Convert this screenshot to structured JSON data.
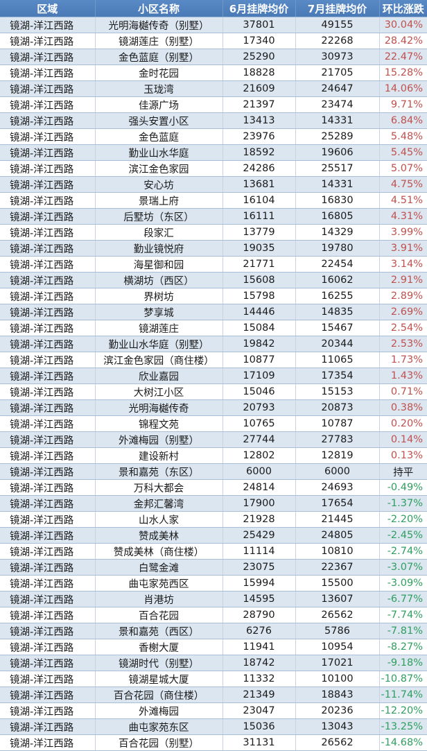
{
  "table": {
    "headers": [
      "区域",
      "小区名称",
      "6月挂牌均价",
      "7月挂牌均价",
      "环比涨跌"
    ],
    "colors": {
      "header_bg": "#4f81bd",
      "stripe": "#dce6f1",
      "up": "#c0504d",
      "down": "#2e9e5e"
    },
    "rows": [
      [
        "镜湖-洋江西路",
        "光明海樾传奇（别墅）",
        "37801",
        "49155",
        "30.04%"
      ],
      [
        "镜湖-洋江西路",
        "镜湖莲庄（别墅）",
        "17340",
        "22268",
        "28.42%"
      ],
      [
        "镜湖-洋江西路",
        "金色蓝庭（别墅）",
        "25290",
        "30973",
        "22.47%"
      ],
      [
        "镜湖-洋江西路",
        "金时花园",
        "18828",
        "21705",
        "15.28%"
      ],
      [
        "镜湖-洋江西路",
        "玉珑湾",
        "21609",
        "24647",
        "14.06%"
      ],
      [
        "镜湖-洋江西路",
        "佳源广场",
        "21397",
        "23474",
        "9.71%"
      ],
      [
        "镜湖-洋江西路",
        "强头安置小区",
        "13413",
        "14331",
        "6.84%"
      ],
      [
        "镜湖-洋江西路",
        "金色蓝庭",
        "23976",
        "25289",
        "5.48%"
      ],
      [
        "镜湖-洋江西路",
        "勤业山水华庭",
        "18592",
        "19606",
        "5.45%"
      ],
      [
        "镜湖-洋江西路",
        "滨江金色家园",
        "24286",
        "25517",
        "5.07%"
      ],
      [
        "镜湖-洋江西路",
        "安心坊",
        "13681",
        "14331",
        "4.75%"
      ],
      [
        "镜湖-洋江西路",
        "景瑞上府",
        "16104",
        "16830",
        "4.51%"
      ],
      [
        "镜湖-洋江西路",
        "后墅坊（东区）",
        "16111",
        "16805",
        "4.31%"
      ],
      [
        "镜湖-洋江西路",
        "段家汇",
        "13779",
        "14329",
        "3.99%"
      ],
      [
        "镜湖-洋江西路",
        "勤业镜悦府",
        "19035",
        "19780",
        "3.91%"
      ],
      [
        "镜湖-洋江西路",
        "海星御和园",
        "21771",
        "22454",
        "3.14%"
      ],
      [
        "镜湖-洋江西路",
        "横湖坊（西区）",
        "15608",
        "16062",
        "2.91%"
      ],
      [
        "镜湖-洋江西路",
        "界树坊",
        "15798",
        "16255",
        "2.89%"
      ],
      [
        "镜湖-洋江西路",
        "梦享城",
        "14446",
        "14835",
        "2.69%"
      ],
      [
        "镜湖-洋江西路",
        "镜湖莲庄",
        "15084",
        "15467",
        "2.54%"
      ],
      [
        "镜湖-洋江西路",
        "勤业山水华庭（别墅）",
        "19842",
        "20344",
        "2.53%"
      ],
      [
        "镜湖-洋江西路",
        "滨江金色家园（商住楼）",
        "10877",
        "11065",
        "1.73%"
      ],
      [
        "镜湖-洋江西路",
        "欣业嘉园",
        "17109",
        "17354",
        "1.43%"
      ],
      [
        "镜湖-洋江西路",
        "大树江小区",
        "15046",
        "15153",
        "0.71%"
      ],
      [
        "镜湖-洋江西路",
        "光明海樾传奇",
        "20793",
        "20873",
        "0.38%"
      ],
      [
        "镜湖-洋江西路",
        "锦程文苑",
        "10765",
        "10787",
        "0.20%"
      ],
      [
        "镜湖-洋江西路",
        "外滩梅园（别墅）",
        "27744",
        "27783",
        "0.14%"
      ],
      [
        "镜湖-洋江西路",
        "建设新村",
        "12802",
        "12819",
        "0.13%"
      ],
      [
        "镜湖-洋江西路",
        "景和嘉苑（东区）",
        "6000",
        "6000",
        "持平"
      ],
      [
        "镜湖-洋江西路",
        "万科大都会",
        "24814",
        "24693",
        "-0.49%"
      ],
      [
        "镜湖-洋江西路",
        "金邦汇馨湾",
        "17900",
        "17654",
        "-1.37%"
      ],
      [
        "镜湖-洋江西路",
        "山水人家",
        "21928",
        "21445",
        "-2.20%"
      ],
      [
        "镜湖-洋江西路",
        "赞成美林",
        "25429",
        "24805",
        "-2.45%"
      ],
      [
        "镜湖-洋江西路",
        "赞成美林（商住楼）",
        "11114",
        "10810",
        "-2.74%"
      ],
      [
        "镜湖-洋江西路",
        "白鹭金滩",
        "23075",
        "22367",
        "-3.07%"
      ],
      [
        "镜湖-洋江西路",
        "曲屯家苑西区",
        "15994",
        "15500",
        "-3.09%"
      ],
      [
        "镜湖-洋江西路",
        "肖港坊",
        "14595",
        "13607",
        "-6.77%"
      ],
      [
        "镜湖-洋江西路",
        "百合花园",
        "28790",
        "26562",
        "-7.74%"
      ],
      [
        "镜湖-洋江西路",
        "景和嘉苑（西区）",
        "6276",
        "5786",
        "-7.81%"
      ],
      [
        "镜湖-洋江西路",
        "香榭大厦",
        "11941",
        "10954",
        "-8.27%"
      ],
      [
        "镜湖-洋江西路",
        "镜湖时代（别墅）",
        "18742",
        "17021",
        "-9.18%"
      ],
      [
        "镜湖-洋江西路",
        "镜湖星城大厦",
        "11332",
        "10100",
        "-10.87%"
      ],
      [
        "镜湖-洋江西路",
        "百合花园（商住楼）",
        "21349",
        "18843",
        "-11.74%"
      ],
      [
        "镜湖-洋江西路",
        "外滩梅园",
        "23047",
        "20236",
        "-12.20%"
      ],
      [
        "镜湖-洋江西路",
        "曲屯家苑东区",
        "15036",
        "13043",
        "-13.25%"
      ],
      [
        "镜湖-洋江西路",
        "百合花园（别墅）",
        "31131",
        "26562",
        "-14.68%"
      ]
    ]
  }
}
